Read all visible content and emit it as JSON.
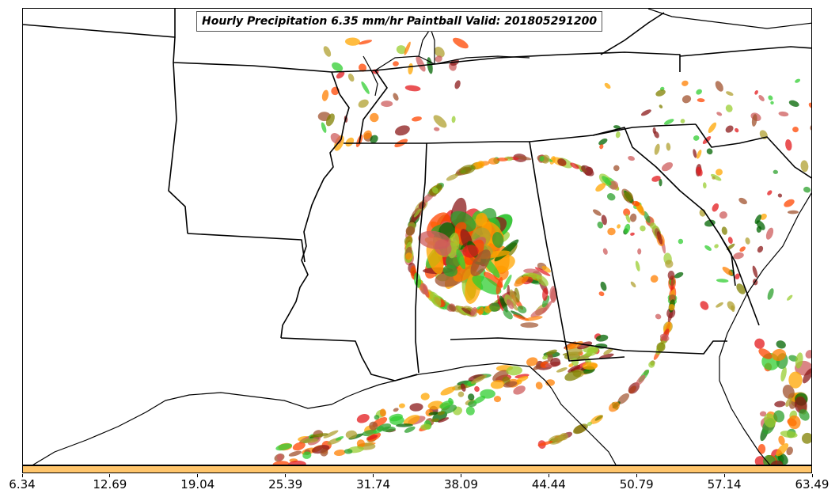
{
  "title": "Hourly Precipitation 6.35 mm/hr Paintball Valid: 201805291200",
  "colorbar": {
    "color": "#ffc56b",
    "ticks": [
      "6.34",
      "12.69",
      "19.04",
      "25.39",
      "31.74",
      "38.09",
      "44.44",
      "50.79",
      "57.14",
      "63.49"
    ]
  },
  "paintball_colors": [
    "#ff7f00",
    "#e31a1c",
    "#8b1a1a",
    "#2ca02c",
    "#006400",
    "#32cd32",
    "#808000",
    "#ff4500",
    "#ffa500",
    "#cd5c5c",
    "#a0522d",
    "#9acd32",
    "#b0a030"
  ],
  "map": {
    "features": [
      "state-borders",
      "coastline",
      "great-lakes",
      "precipitation-paintballs"
    ],
    "storm_center_description_visible": false
  }
}
